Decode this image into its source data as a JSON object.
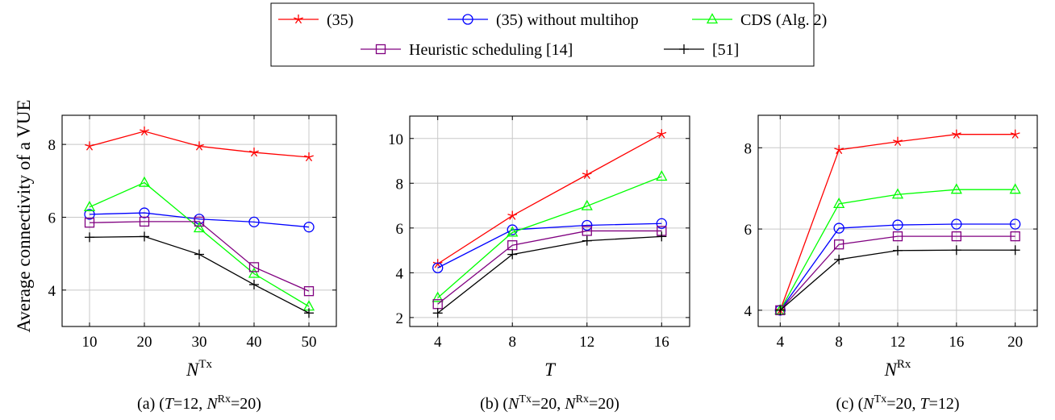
{
  "colors": {
    "s35": "#ff0000",
    "s35_nomulti": "#0000ff",
    "cds": "#00ff00",
    "heuristic": "#800080",
    "ref51": "#000000"
  },
  "legend": {
    "placement": "top-center",
    "entries": [
      {
        "label": "(35)",
        "marker": "star",
        "color": "#ff0000"
      },
      {
        "label": "(35) without multihop",
        "marker": "circle",
        "color": "#0000ff"
      },
      {
        "label": "CDS (Alg. 2)",
        "marker": "triangle",
        "color": "#00ff00"
      },
      {
        "label": "Heuristic scheduling [14]",
        "marker": "square",
        "color": "#800080"
      },
      {
        "label": "[51]",
        "marker": "plus",
        "color": "#000000"
      }
    ]
  },
  "ylabel": "Average connectivity of a VUE",
  "chart_data": [
    {
      "type": "line",
      "xlabel_base": "N",
      "xlabel_sup": "Tx",
      "caption": "(a) (T=12, N^Rx=20)",
      "caption_parts": {
        "lead": "(a) (",
        "p1": "T",
        "v1": "=12, ",
        "p2": "N",
        "p2sup": "Rx",
        "v2": "=20)"
      },
      "x": [
        10,
        20,
        30,
        40,
        50
      ],
      "xlim": [
        5,
        55
      ],
      "ylim": [
        3.0,
        8.8
      ],
      "yticks": [
        4,
        6,
        8
      ],
      "grid": true,
      "series": [
        {
          "name": "(35)",
          "values": [
            7.95,
            8.36,
            7.95,
            7.78,
            7.65
          ]
        },
        {
          "name": "(35) without multihop",
          "values": [
            6.08,
            6.12,
            5.95,
            5.87,
            5.73
          ]
        },
        {
          "name": "CDS (Alg. 2)",
          "values": [
            6.28,
            6.95,
            5.7,
            4.45,
            3.55
          ]
        },
        {
          "name": "Heuristic scheduling [14]",
          "values": [
            5.85,
            5.88,
            5.88,
            4.63,
            3.97
          ]
        },
        {
          "name": "[51]",
          "values": [
            5.45,
            5.47,
            4.98,
            4.15,
            3.37
          ]
        }
      ]
    },
    {
      "type": "line",
      "xlabel_base": "T",
      "xlabel_sup": "",
      "caption": "(b) (N^Tx=20, N^Rx=20)",
      "caption_parts": {
        "lead": "(b) (",
        "p1": "N",
        "p1sup": "Tx",
        "v1": "=20, ",
        "p2": "N",
        "p2sup": "Rx",
        "v2": "=20)"
      },
      "x": [
        4,
        8,
        12,
        16
      ],
      "xlim": [
        2.5,
        17.5
      ],
      "ylim": [
        1.6,
        11.0
      ],
      "yticks": [
        2,
        4,
        6,
        8,
        10
      ],
      "grid": true,
      "series": [
        {
          "name": "(35)",
          "values": [
            4.4,
            6.55,
            8.38,
            10.2
          ]
        },
        {
          "name": "(35) without multihop",
          "values": [
            4.22,
            5.92,
            6.12,
            6.2
          ]
        },
        {
          "name": "CDS (Alg. 2)",
          "values": [
            2.88,
            5.8,
            6.98,
            8.3
          ]
        },
        {
          "name": "Heuristic scheduling [14]",
          "values": [
            2.6,
            5.23,
            5.87,
            5.87
          ]
        },
        {
          "name": "[51]",
          "values": [
            2.2,
            4.82,
            5.43,
            5.62
          ]
        }
      ]
    },
    {
      "type": "line",
      "xlabel_base": "N",
      "xlabel_sup": "Rx",
      "caption": "(c) (N^Tx=20, T=12)",
      "caption_parts": {
        "lead": "(c) (",
        "p1": "N",
        "p1sup": "Tx",
        "v1": "=20, ",
        "p2": "T",
        "v2": "=12)"
      },
      "x": [
        4,
        8,
        12,
        16,
        20
      ],
      "xlim": [
        2.5,
        21.5
      ],
      "ylim": [
        3.6,
        8.8
      ],
      "yticks": [
        4,
        6,
        8
      ],
      "grid": true,
      "series": [
        {
          "name": "(35)",
          "values": [
            4.0,
            7.95,
            8.15,
            8.33,
            8.33
          ]
        },
        {
          "name": "(35) without multihop",
          "values": [
            4.0,
            6.02,
            6.1,
            6.12,
            6.12
          ]
        },
        {
          "name": "CDS (Alg. 2)",
          "values": [
            4.0,
            6.62,
            6.85,
            6.97,
            6.97
          ]
        },
        {
          "name": "Heuristic scheduling [14]",
          "values": [
            4.0,
            5.62,
            5.82,
            5.82,
            5.82
          ]
        },
        {
          "name": "[51]",
          "values": [
            4.0,
            5.25,
            5.47,
            5.48,
            5.48
          ]
        }
      ]
    }
  ]
}
